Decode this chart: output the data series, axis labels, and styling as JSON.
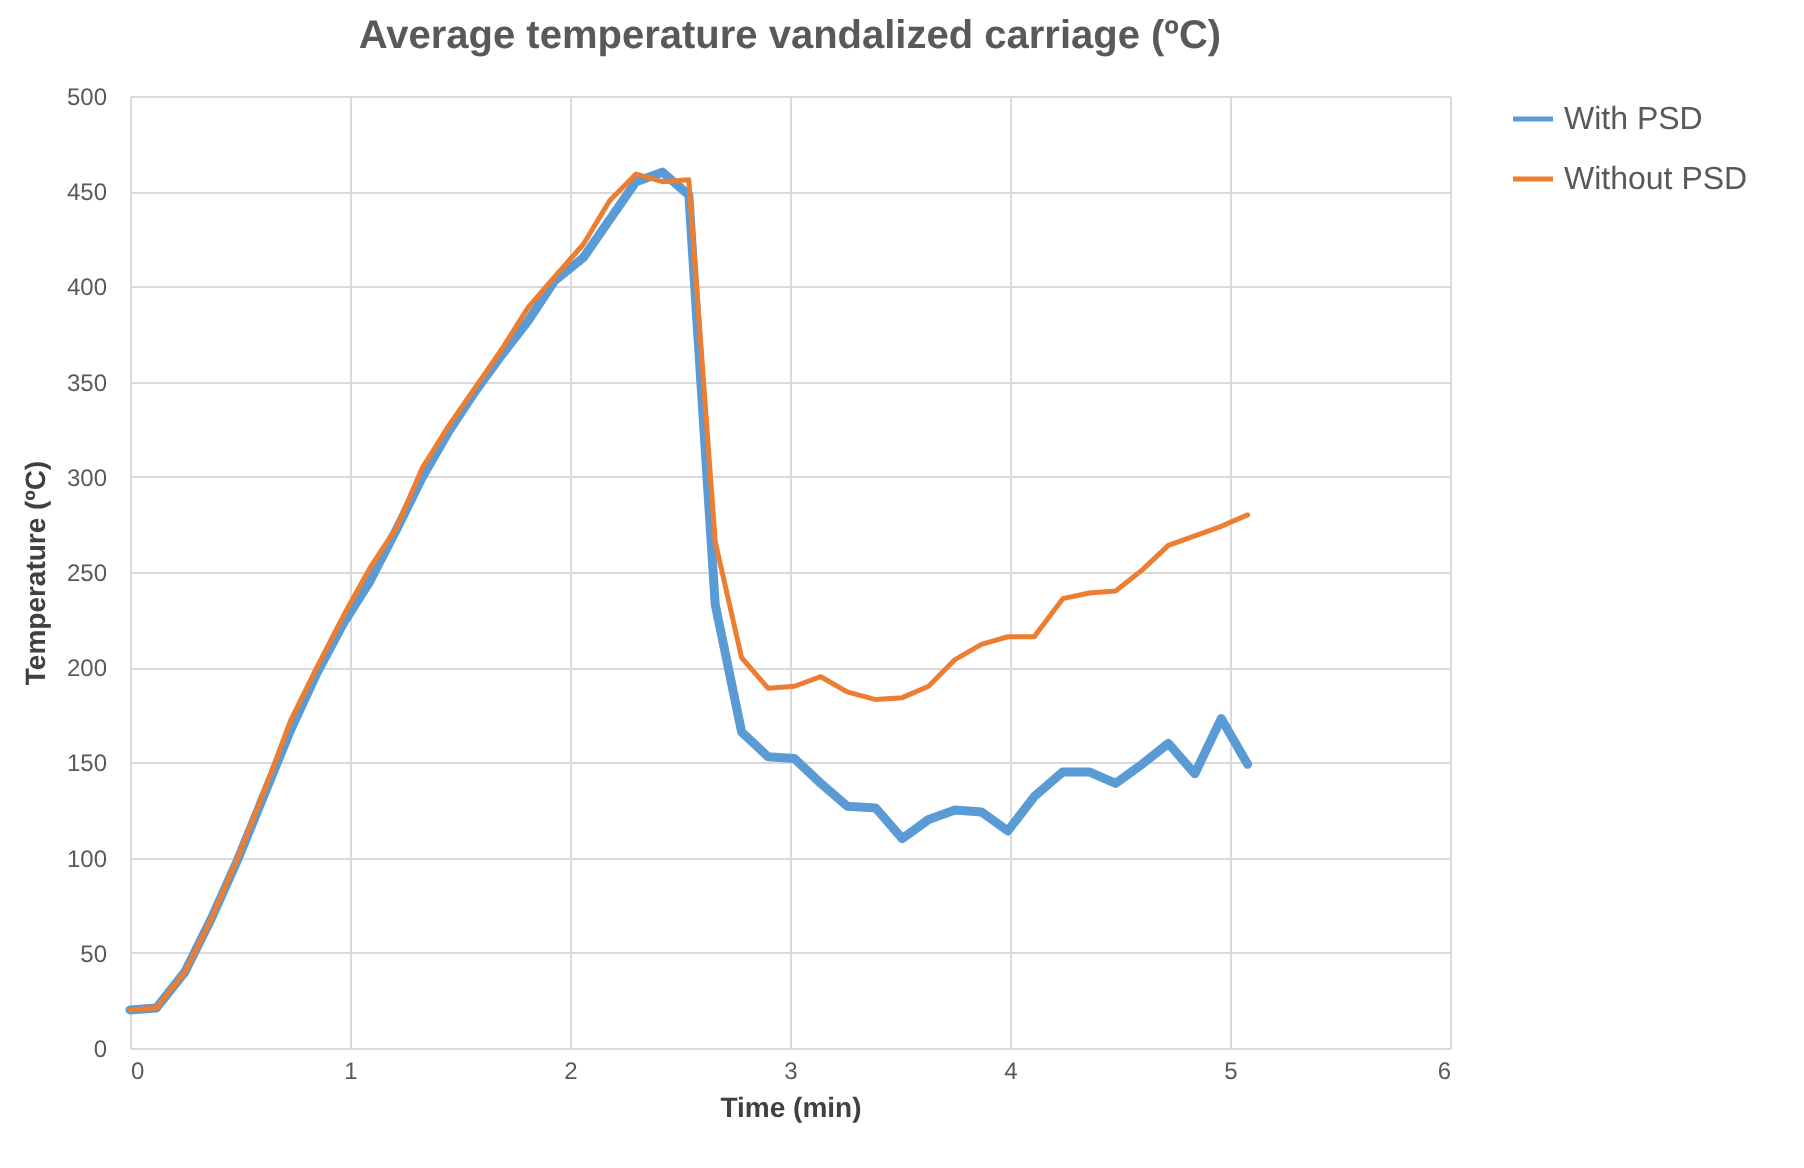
{
  "chart_data": {
    "type": "line",
    "title": "Average temperature vandalized carriage (ºC)",
    "xlabel": "Time (min)",
    "ylabel": "Temperature (ºC)",
    "x": [
      0,
      0.12,
      0.25,
      0.37,
      0.49,
      0.61,
      0.73,
      0.85,
      0.97,
      1.09,
      1.21,
      1.33,
      1.45,
      1.57,
      1.69,
      1.81,
      1.93,
      2.06,
      2.18,
      2.3,
      2.42,
      2.54,
      2.66,
      2.78,
      2.9,
      3.02,
      3.14,
      3.26,
      3.39,
      3.51,
      3.63,
      3.75,
      3.87,
      3.99,
      4.11,
      4.24,
      4.36,
      4.48,
      4.6,
      4.72,
      4.84,
      4.96,
      5.08
    ],
    "series": [
      {
        "name": "With PSD",
        "color": "#5b9bd5",
        "values": [
          20,
          21,
          40,
          68,
          99,
          133,
          167,
          197,
          223,
          245,
          272,
          300,
          324,
          345,
          364,
          382,
          403,
          415,
          435,
          455,
          460,
          448,
          233,
          166,
          153,
          152,
          139,
          127,
          126,
          110,
          120,
          125,
          124,
          114,
          132,
          145,
          145,
          139,
          149,
          160,
          144,
          173,
          149
        ]
      },
      {
        "name": "Without PSD",
        "color": "#ed7d31",
        "values": [
          20,
          21,
          40,
          68,
          100,
          135,
          172,
          200,
          227,
          252,
          273,
          305,
          327,
          347,
          367,
          389,
          405,
          422,
          445,
          459,
          455,
          456,
          266,
          205,
          189,
          190,
          195,
          187,
          183,
          184,
          190,
          204,
          212,
          216,
          216,
          236,
          239,
          240,
          251,
          264,
          269,
          274,
          280
        ]
      }
    ],
    "xlim": [
      0,
      6
    ],
    "xticks": [
      0,
      1,
      2,
      3,
      4,
      5,
      6
    ],
    "ylim": [
      0,
      500
    ],
    "yticks": [
      0,
      50,
      100,
      150,
      200,
      250,
      300,
      350,
      400,
      450,
      500
    ],
    "grid": true,
    "legend": "right",
    "line_style": "solid"
  }
}
